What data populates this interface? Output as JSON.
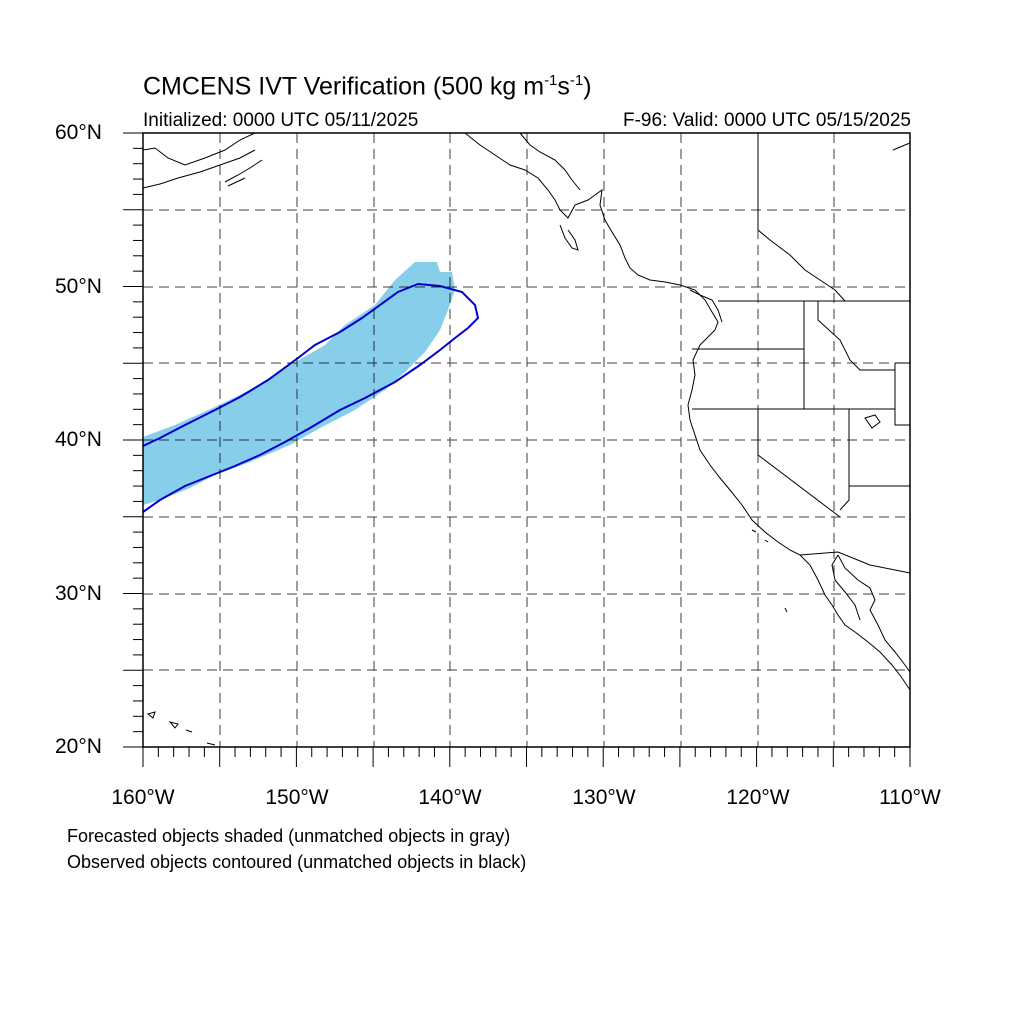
{
  "title": {
    "main": "CMCENS IVT Verification (500 kg m",
    "exp1": "-1",
    "mid": "s",
    "exp2": "-1",
    "close": ")"
  },
  "subtitle": {
    "initialized": "Initialized: 0000 UTC 05/11/2025",
    "valid": "F-96: Valid: 0000 UTC 05/15/2025"
  },
  "lat_labels": [
    "60°N",
    "50°N",
    "40°N",
    "30°N",
    "20°N"
  ],
  "lon_labels": [
    "160°W",
    "150°W",
    "140°W",
    "130°W",
    "120°W",
    "110°W"
  ],
  "notes": [
    "Forecasted objects shaded (unmatched objects in gray)",
    "Observed objects contoured (unmatched objects in black)"
  ],
  "colors": {
    "forecast_fill": "#87ceeb",
    "observed_contour": "#0000cd",
    "coastline": "#000000",
    "grid": "#000000"
  }
}
